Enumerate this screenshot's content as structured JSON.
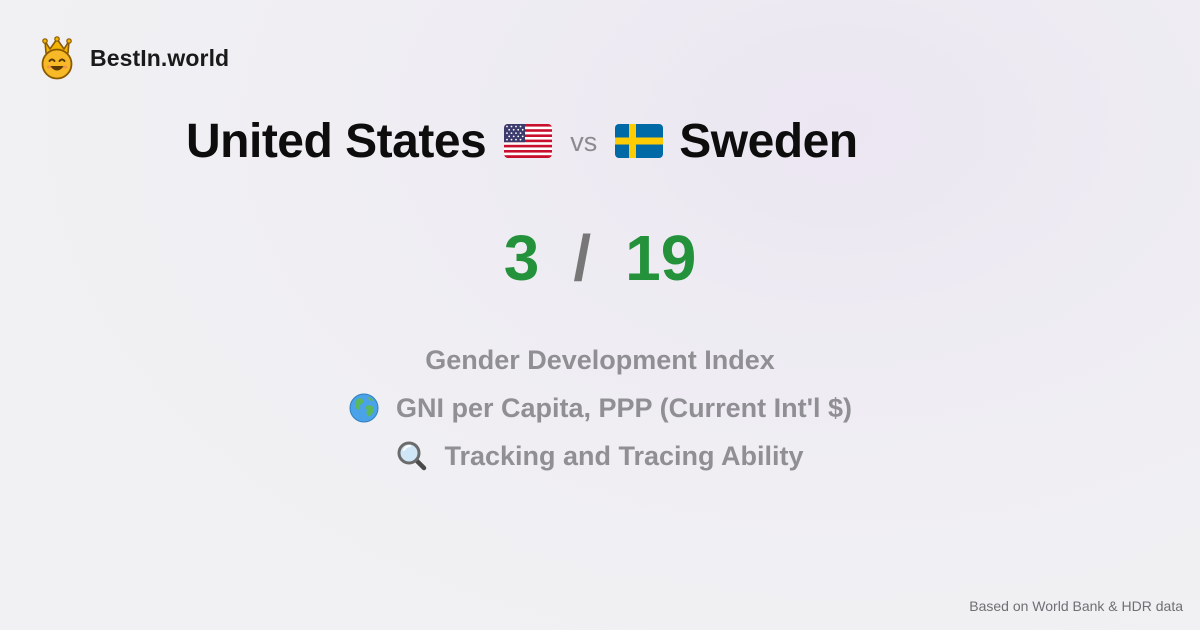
{
  "brand": {
    "name": "BestIn.world",
    "logo_icon": "crowned-smiley-icon"
  },
  "comparison": {
    "country_a": {
      "name": "United States",
      "flag_icon": "us-flag-icon"
    },
    "vs_label": "vs",
    "country_b": {
      "name": "Sweden",
      "flag_icon": "sweden-flag-icon"
    }
  },
  "score": {
    "a": "3",
    "separator": "/",
    "b": "19",
    "color": "#23923b"
  },
  "metrics": [
    {
      "label": "Gender Development Index",
      "icon": ""
    },
    {
      "label": "GNI per Capita, PPP (Current Int'l $)",
      "icon": "globe-icon"
    },
    {
      "label": "Tracking and Tracing Ability",
      "icon": "magnifying-glass-icon"
    }
  ],
  "footer": {
    "source": "Based on World Bank & HDR data"
  }
}
